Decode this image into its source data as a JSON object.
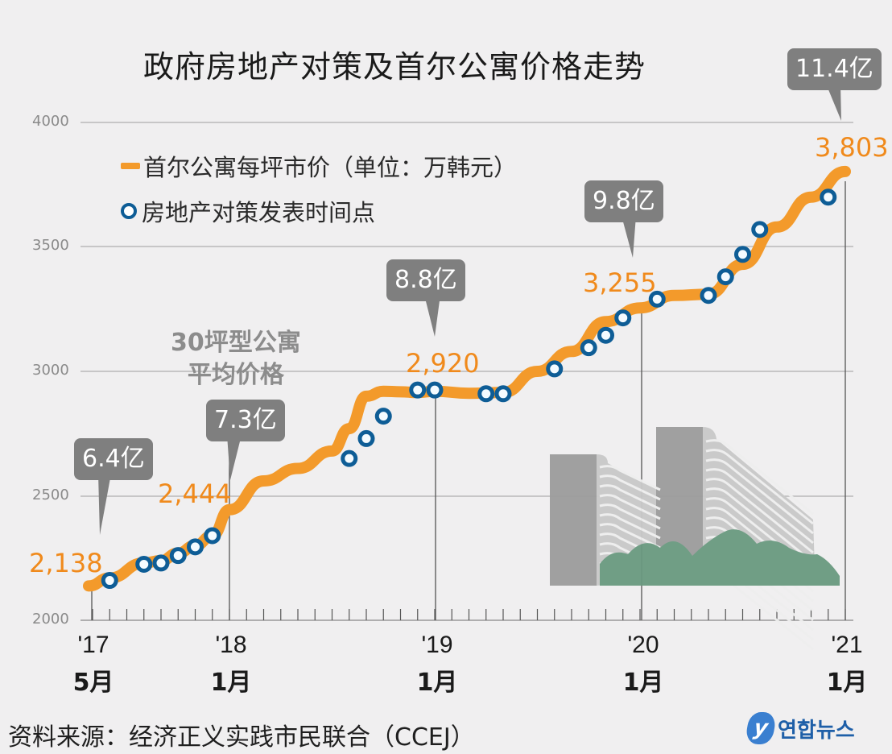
{
  "title": "政府房地产对策及首尔公寓价格走势",
  "legend": {
    "price_line": "首尔公寓每坪市价（单位：万韩元）",
    "policy_points": "房地产对策发表时间点"
  },
  "annotation_note": [
    "30坪型公寓",
    "平均价格"
  ],
  "y_ticks": [
    "4000",
    "3500",
    "3000",
    "2500",
    "2000"
  ],
  "x_ticks": [
    {
      "year": "'17",
      "month": "5月"
    },
    {
      "year": "'18",
      "month": "1月"
    },
    {
      "year": "'19",
      "month": "1月"
    },
    {
      "year": "'20",
      "month": "1月"
    },
    {
      "year": "'21",
      "month": "1月"
    }
  ],
  "callouts": [
    "6.4亿",
    "7.3亿",
    "8.8亿",
    "9.8亿",
    "11.4亿"
  ],
  "value_labels": [
    "2,138",
    "2,444",
    "2,920",
    "3,255",
    "3,803"
  ],
  "source": "资料来源：经济正义实践市民联合（CCEJ）",
  "logo_text": "연합뉴스",
  "colors": {
    "line": "#f39a2b",
    "marker": "#0e5d96",
    "callout": "#7f7f7f",
    "value": "#f08a1c"
  },
  "chart_data": {
    "type": "line",
    "title": "政府房地产对策及首尔公寓价格走势",
    "xlabel": "",
    "ylabel": "首尔公寓每坪市价（单位：万韩元）",
    "ylim": [
      2000,
      4000
    ],
    "y_ticks": [
      2000,
      2500,
      3000,
      3500,
      4000
    ],
    "x_tick_labels": [
      "'17 5月",
      "'18 1月",
      "'19 1月",
      "'20 1月",
      "'21 1月"
    ],
    "grid": true,
    "legend_position": "top-left",
    "series": [
      {
        "name": "首尔公寓每坪市价（单位：万韩元）",
        "x": [
          "2017-05",
          "2017-06",
          "2017-08",
          "2017-09",
          "2017-10",
          "2017-11",
          "2017-12",
          "2018-01",
          "2018-03",
          "2018-05",
          "2018-07",
          "2018-08",
          "2018-09",
          "2018-10",
          "2018-11",
          "2018-12",
          "2019-01",
          "2019-03",
          "2019-05",
          "2019-07",
          "2019-09",
          "2019-11",
          "2020-01",
          "2020-03",
          "2020-05",
          "2020-07",
          "2020-09",
          "2020-11",
          "2021-01"
        ],
        "values": [
          2138,
          2170,
          2230,
          2240,
          2270,
          2300,
          2340,
          2444,
          2560,
          2610,
          2680,
          2770,
          2900,
          2920,
          2918,
          2915,
          2920,
          2912,
          2915,
          3000,
          3080,
          3200,
          3255,
          3305,
          3310,
          3430,
          3580,
          3700,
          3803
        ]
      },
      {
        "name": "房地产对策发表时间点",
        "type": "scatter",
        "x": [
          "2017-06",
          "2017-08",
          "2017-09",
          "2017-10",
          "2017-11",
          "2017-12",
          "2018-08",
          "2018-09",
          "2018-10",
          "2018-12",
          "2019-01",
          "2019-04",
          "2019-05",
          "2019-08",
          "2019-10",
          "2019-11",
          "2019-12",
          "2020-02",
          "2020-05",
          "2020-06",
          "2020-07",
          "2020-08",
          "2020-12"
        ],
        "values": [
          2160,
          2225,
          2230,
          2260,
          2295,
          2340,
          2650,
          2730,
          2820,
          2925,
          2925,
          2910,
          2910,
          3010,
          3095,
          3145,
          3215,
          3290,
          3305,
          3380,
          3470,
          3570,
          3700
        ]
      }
    ],
    "annotations": [
      {
        "x": "2017-05",
        "value_label": "2,138",
        "callout": "6.4亿"
      },
      {
        "x": "2018-01",
        "value_label": "2,444",
        "callout": "7.3亿"
      },
      {
        "x": "2019-01",
        "value_label": "2,920",
        "callout": "8.8亿"
      },
      {
        "x": "2020-01",
        "value_label": "3,255",
        "callout": "9.8亿"
      },
      {
        "x": "2021-01",
        "value_label": "3,803",
        "callout": "11.4亿"
      },
      {
        "text": "30坪型公寓 平均价格"
      }
    ]
  }
}
